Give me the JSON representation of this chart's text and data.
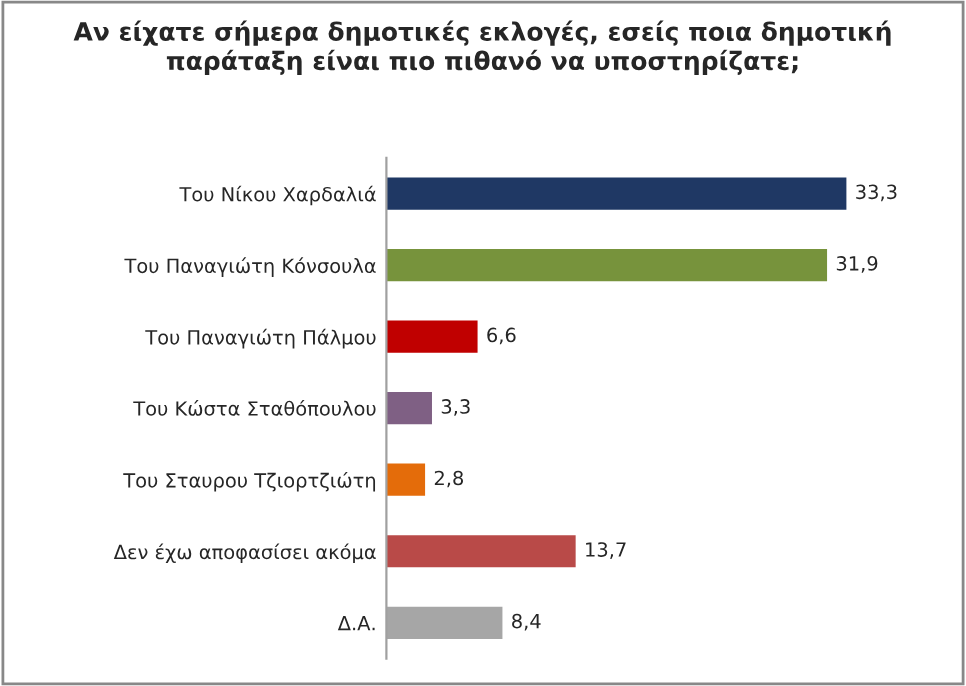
{
  "chart_data": {
    "type": "bar",
    "orientation": "horizontal",
    "title": "Αν είχατε σήμερα δημοτικές εκλογές, εσείς ποια δημοτική παράταξη είναι πιο πιθανό να υποστηρίζατε;",
    "categories": [
      "Του Νίκου Χαρδαλιά",
      "Του Παναγιώτη Κόνσουλα",
      "Του Παναγιώτη Πάλμου",
      "Του Κώστα Σταθόπουλου",
      "Του Σταυρου Τζιορτζιώτη",
      "Δεν έχω αποφασίσει ακόμα",
      "Δ.Α."
    ],
    "values": [
      33.3,
      31.9,
      6.6,
      3.3,
      2.8,
      13.7,
      8.4
    ],
    "value_labels": [
      "33,3",
      "31,9",
      "6,6",
      "3,3",
      "2,8",
      "13,7",
      "8,4"
    ],
    "colors": [
      "#1f3864",
      "#77933c",
      "#c00000",
      "#7f6084",
      "#e46c0a",
      "#b94a48",
      "#a6a6a6"
    ],
    "grid": false,
    "legend": false
  }
}
